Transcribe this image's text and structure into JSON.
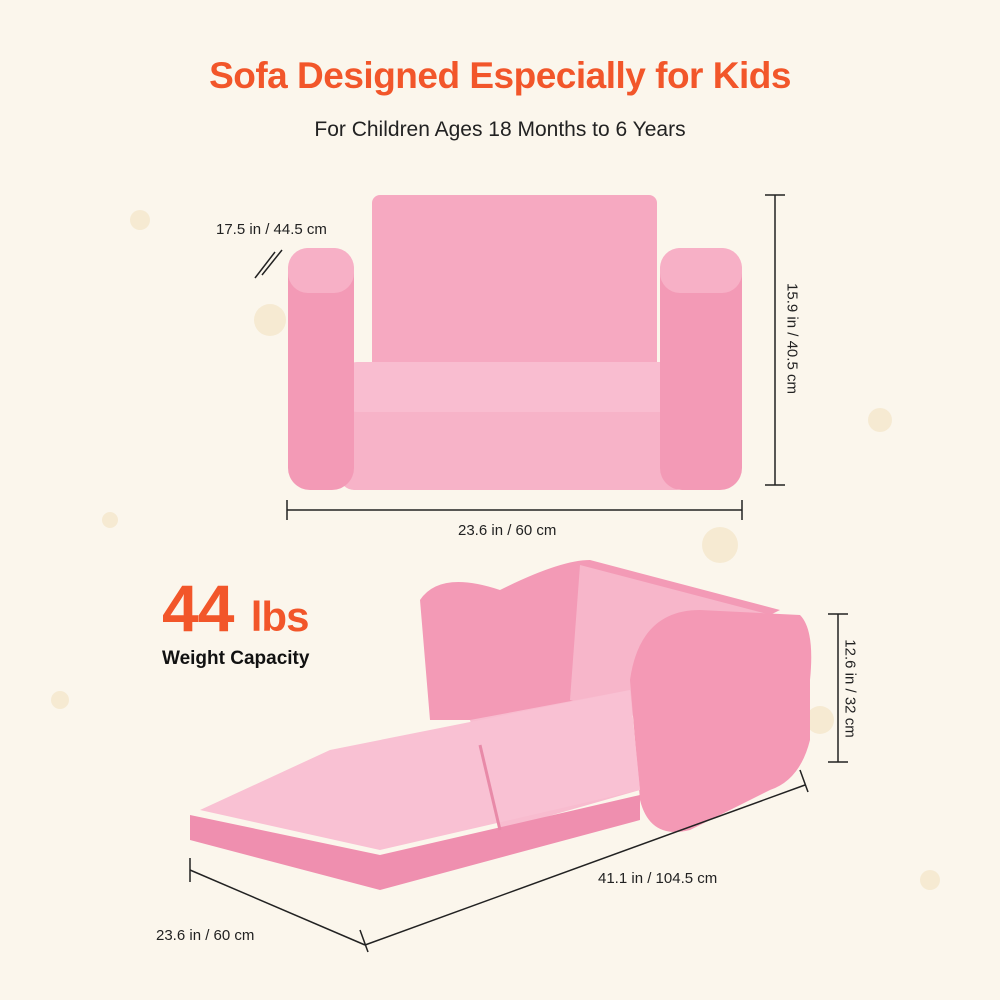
{
  "header": {
    "title": "Sofa Designed Especially for Kids",
    "subtitle": "For Children Ages 18 Months to 6 Years"
  },
  "sofa_dimensions": {
    "depth": "17.5 in / 44.5 cm",
    "height": "15.9 in / 40.5 cm",
    "width": "23.6 in / 60 cm"
  },
  "bed_dimensions": {
    "height": "12.6 in / 32 cm",
    "length": "41.1 in / 104.5 cm",
    "width": "23.6 in / 60 cm"
  },
  "capacity": {
    "value": "44",
    "unit": "lbs",
    "label": "Weight Capacity"
  },
  "colors": {
    "accent": "#f2562a",
    "sofa_pink": "#f5a3bd",
    "background": "#fbf6ec"
  }
}
